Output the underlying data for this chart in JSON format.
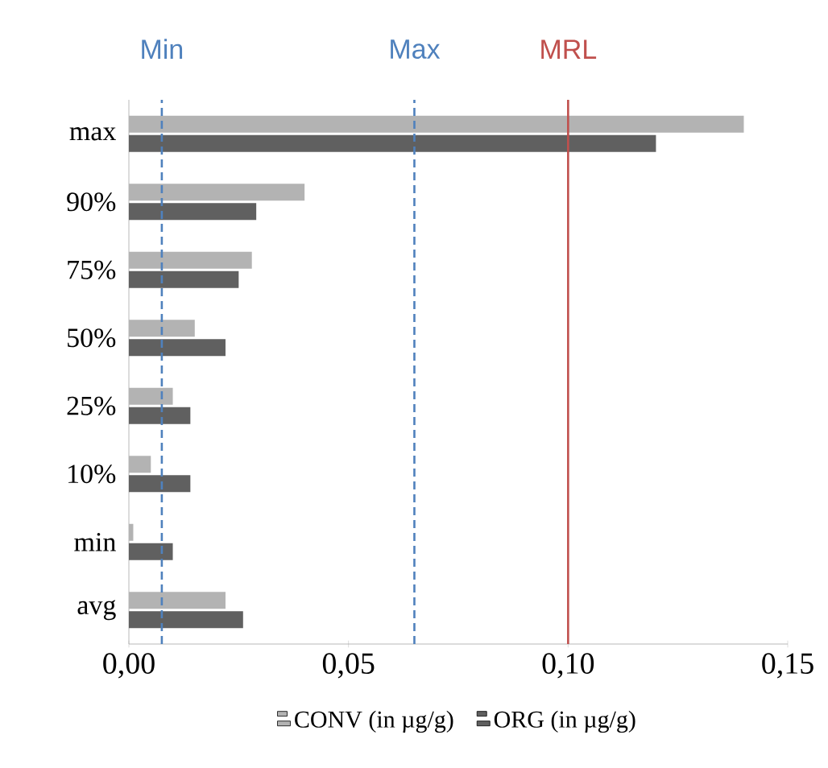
{
  "chart_data": {
    "type": "bar",
    "orientation": "horizontal",
    "categories": [
      "max",
      "90%",
      "75%",
      "50%",
      "25%",
      "10%",
      "min",
      "avg"
    ],
    "series": [
      {
        "name": "CONV (in µg/g)",
        "color": "#b3b3b3",
        "values": [
          0.14,
          0.04,
          0.028,
          0.015,
          0.01,
          0.005,
          0.001,
          0.022
        ]
      },
      {
        "name": "ORG (in µg/g)",
        "color": "#606060",
        "values": [
          0.12,
          0.029,
          0.025,
          0.022,
          0.014,
          0.014,
          0.01,
          0.026
        ]
      }
    ],
    "xlim": [
      0,
      0.15
    ],
    "xticks": [
      {
        "value": 0,
        "label": "0,00"
      },
      {
        "value": 0.05,
        "label": "0,05"
      },
      {
        "value": 0.1,
        "label": "0,10"
      },
      {
        "value": 0.15,
        "label": "0,15"
      }
    ],
    "ref_lines": [
      {
        "axis": "x",
        "value": 0.0075,
        "label": "Min",
        "color": "#4f81bd",
        "line_style": "dashed"
      },
      {
        "axis": "x",
        "value": 0.065,
        "label": "Max",
        "color": "#4f81bd",
        "line_style": "dashed"
      },
      {
        "axis": "x",
        "value": 0.1,
        "label": "MRL",
        "color": "#c0504d",
        "line_style": "solid"
      }
    ],
    "grid": false,
    "legend": "bottom"
  }
}
